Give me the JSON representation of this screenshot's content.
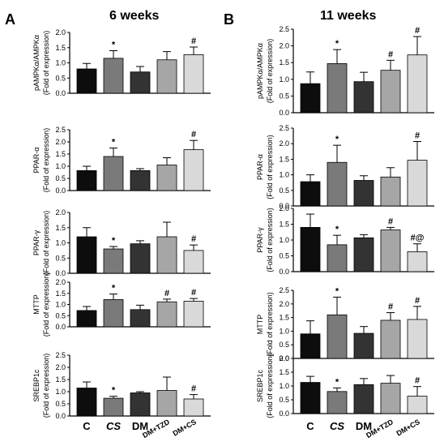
{
  "panels": [
    {
      "letter": "A",
      "title": "6 weeks"
    },
    {
      "letter": "B",
      "title": "11 weeks"
    }
  ],
  "groups": [
    "C",
    "CS",
    "DM",
    "DM+TZD",
    "DM+CS"
  ],
  "group_colors": [
    "#0d0d0d",
    "#7a7a7a",
    "#333333",
    "#a6a6a6",
    "#d9d9d9"
  ],
  "chart_data": [
    {
      "type": "bar",
      "panel": "A",
      "ylabel_main": "pAMPKα/AMPKα",
      "ylabel_sub": "(Fold of expression)",
      "categories": [
        "C",
        "CS",
        "DM",
        "DM+TZD",
        "DM+CS"
      ],
      "values": [
        0.8,
        1.15,
        0.7,
        1.1,
        1.27
      ],
      "errors": [
        0.18,
        0.25,
        0.18,
        0.27,
        0.25
      ],
      "annotations": [
        "",
        "*",
        "",
        "",
        "#"
      ],
      "ylim": [
        0,
        2.0
      ],
      "yticks": [
        "0.0",
        "0.5",
        "1.0",
        "1.5",
        "2.0"
      ]
    },
    {
      "type": "bar",
      "panel": "A",
      "ylabel_main": "PPAR-α",
      "ylabel_sub": "(Fold of expression)",
      "categories": [
        "C",
        "CS",
        "DM",
        "DM+TZD",
        "DM+CS"
      ],
      "values": [
        0.82,
        1.4,
        0.82,
        1.05,
        1.68
      ],
      "errors": [
        0.18,
        0.35,
        0.08,
        0.3,
        0.38
      ],
      "annotations": [
        "",
        "*",
        "",
        "",
        "#"
      ],
      "ylim": [
        0,
        2.5
      ],
      "yticks": [
        "0.0",
        "0.5",
        "1.0",
        "1.5",
        "2.0",
        "2.5"
      ]
    },
    {
      "type": "bar",
      "panel": "A",
      "ylabel_main": "PPAR-γ",
      "ylabel_sub": "(Fold of expression)",
      "categories": [
        "C",
        "CS",
        "DM",
        "DM+TZD",
        "DM+CS"
      ],
      "values": [
        1.2,
        0.8,
        0.97,
        1.2,
        0.75
      ],
      "errors": [
        0.3,
        0.08,
        0.1,
        0.48,
        0.18
      ],
      "annotations": [
        "",
        "*",
        "",
        "",
        "#"
      ],
      "ylim": [
        0,
        2.0
      ],
      "yticks": [
        "0.0",
        "0.5",
        "1.0",
        "1.5",
        "2.0"
      ]
    },
    {
      "type": "bar",
      "panel": "A",
      "ylabel_main": "MTTP",
      "ylabel_sub": "(Fold of expression)",
      "categories": [
        "C",
        "CS",
        "DM",
        "DM+TZD",
        "DM+CS"
      ],
      "values": [
        0.73,
        1.22,
        0.77,
        1.12,
        1.15
      ],
      "errors": [
        0.18,
        0.25,
        0.2,
        0.12,
        0.12
      ],
      "annotations": [
        "",
        "*",
        "",
        "#",
        "#"
      ],
      "ylim": [
        0,
        2.0
      ],
      "yticks": [
        "0.0",
        "0.5",
        "1.0",
        "1.5",
        "2.0"
      ]
    },
    {
      "type": "bar",
      "panel": "A",
      "ylabel_main": "SREBP1c",
      "ylabel_sub": "(Fold of expression)",
      "categories": [
        "C",
        "CS",
        "DM",
        "DM+TZD",
        "DM+CS"
      ],
      "values": [
        1.15,
        0.73,
        0.95,
        1.05,
        0.7
      ],
      "errors": [
        0.25,
        0.08,
        0.05,
        0.55,
        0.18
      ],
      "annotations": [
        "",
        "*",
        "",
        "",
        "#"
      ],
      "ylim": [
        0,
        2.5
      ],
      "yticks": [
        "0.0",
        "0.5",
        "1.0",
        "1.5",
        "2.0",
        "2.5"
      ]
    },
    {
      "type": "bar",
      "panel": "B",
      "ylabel_main": "pAMPKα/AMPKα",
      "ylabel_sub": "(Fold of expression)",
      "categories": [
        "C",
        "CS",
        "DM",
        "DM+TZD",
        "DM+CS"
      ],
      "values": [
        0.87,
        1.47,
        0.93,
        1.27,
        1.73
      ],
      "errors": [
        0.35,
        0.42,
        0.28,
        0.3,
        0.55
      ],
      "annotations": [
        "",
        "*",
        "",
        "#",
        "#"
      ],
      "ylim": [
        0,
        2.5
      ],
      "yticks": [
        "0.0",
        "0.5",
        "1.0",
        "1.5",
        "2.0",
        "2.5"
      ]
    },
    {
      "type": "bar",
      "panel": "B",
      "ylabel_main": "PPAR-α",
      "ylabel_sub": "(Fold of expression)",
      "categories": [
        "C",
        "CS",
        "DM",
        "DM+TZD",
        "DM+CS"
      ],
      "values": [
        0.78,
        1.4,
        0.82,
        0.93,
        1.47
      ],
      "errors": [
        0.22,
        0.55,
        0.15,
        0.3,
        0.6
      ],
      "annotations": [
        "",
        "*",
        "",
        "",
        "#"
      ],
      "ylim": [
        0,
        2.5
      ],
      "yticks": [
        "0.0",
        "0.5",
        "1.0",
        "1.5",
        "2.0",
        "2.5"
      ]
    },
    {
      "type": "bar",
      "panel": "B",
      "ylabel_main": "PPAR-γ",
      "ylabel_sub": "(Fold of expression)",
      "categories": [
        "C",
        "CS",
        "DM",
        "DM+TZD",
        "DM+CS"
      ],
      "values": [
        1.4,
        0.85,
        1.07,
        1.32,
        0.63
      ],
      "errors": [
        0.42,
        0.3,
        0.1,
        0.08,
        0.25
      ],
      "annotations": [
        "",
        "*",
        "",
        "#",
        "#@"
      ],
      "ylim": [
        0,
        2.0
      ],
      "yticks": [
        "0.0",
        "0.5",
        "1.0",
        "1.5",
        "2.0"
      ]
    },
    {
      "type": "bar",
      "panel": "B",
      "ylabel_main": "MTTP",
      "ylabel_sub": "(Fold of expression)",
      "categories": [
        "C",
        "CS",
        "DM",
        "DM+TZD",
        "DM+CS"
      ],
      "values": [
        0.9,
        1.6,
        0.92,
        1.4,
        1.43
      ],
      "errors": [
        0.48,
        0.65,
        0.25,
        0.28,
        0.48
      ],
      "annotations": [
        "",
        "*",
        "",
        "#",
        "#"
      ],
      "ylim": [
        0,
        2.5
      ],
      "yticks": [
        "0.0",
        "0.5",
        "1.0",
        "1.5",
        "2.0",
        "2.5"
      ]
    },
    {
      "type": "bar",
      "panel": "B",
      "ylabel_main": "SREBP1c",
      "ylabel_sub": "(Fold of expression)",
      "categories": [
        "C",
        "CS",
        "DM",
        "DM+TZD",
        "DM+CS"
      ],
      "values": [
        1.13,
        0.8,
        1.05,
        1.1,
        0.63
      ],
      "errors": [
        0.22,
        0.13,
        0.22,
        0.28,
        0.35
      ],
      "annotations": [
        "",
        "*",
        "",
        "",
        "#"
      ],
      "ylim": [
        0,
        2.0
      ],
      "yticks": [
        "0.0",
        "0.5",
        "1.0",
        "1.5",
        "2.0"
      ]
    }
  ]
}
